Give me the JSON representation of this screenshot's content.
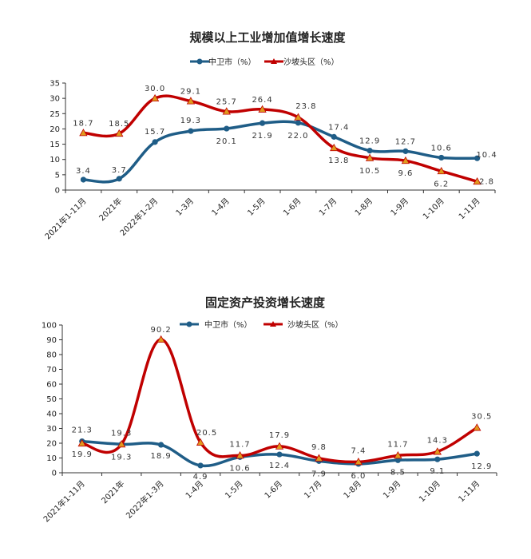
{
  "colors": {
    "blue": "#1f5d87",
    "red": "#c00000",
    "redMarker": "#e09a1e",
    "axis": "#333333"
  },
  "chart_data": [
    {
      "type": "line",
      "title": "规模以上工业增加值增长速度",
      "categories": [
        "2021年1-11月",
        "2021年",
        "2022年1-2月",
        "1-3月",
        "1-4月",
        "1-5月",
        "1-6月",
        "1-7月",
        "1-8月",
        "1-9月",
        "1-10月",
        "1-11月"
      ],
      "ylim": [
        0,
        35
      ],
      "yticks": [
        0,
        5,
        10,
        15,
        20,
        25,
        30,
        35
      ],
      "legend_position": "top-center",
      "series": [
        {
          "name": "中卫市（%）",
          "values": [
            3.4,
            3.7,
            15.7,
            19.3,
            20.1,
            21.9,
            22.0,
            17.4,
            12.9,
            12.7,
            10.6,
            10.4
          ],
          "labels": [
            "3.4",
            "3.7",
            "15.7",
            "19.3",
            "20.1",
            "21.9",
            "22.0",
            "17.4",
            "12.9",
            "12.7",
            "10.6",
            "10.4"
          ]
        },
        {
          "name": "沙坡头区（%）",
          "values": [
            18.7,
            18.5,
            30.0,
            29.1,
            25.7,
            26.4,
            23.8,
            13.8,
            10.5,
            9.6,
            6.2,
            2.8
          ],
          "labels": [
            "18.7",
            "18.5",
            "30.0",
            "29.1",
            "25.7",
            "26.4",
            "23.8",
            "13.8",
            "10.5",
            "9.6",
            "6.2",
            "2.8"
          ]
        }
      ]
    },
    {
      "type": "line",
      "title": "固定资产投资增长速度",
      "categories": [
        "2021年1-11月",
        "2021年",
        "2022年1-3月",
        "1-4月",
        "1-5月",
        "1-6月",
        "1-7月",
        "1-8月",
        "1-9月",
        "1-10月",
        "1-11月"
      ],
      "ylim": [
        0,
        100
      ],
      "yticks": [
        0,
        10,
        20,
        30,
        40,
        50,
        60,
        70,
        80,
        90,
        100
      ],
      "legend_position": "top-center",
      "series": [
        {
          "name": "中卫市（%）",
          "values": [
            21.3,
            19.3,
            18.9,
            4.9,
            10.6,
            12.4,
            7.9,
            6.0,
            8.5,
            9.1,
            12.9
          ],
          "labels": [
            "21.3",
            "19.3",
            "18.9",
            "4.9",
            "10.6",
            "12.4",
            "7.9",
            "6.0",
            "8.5",
            "9.1",
            "12.9"
          ]
        },
        {
          "name": "沙坡头区（%）",
          "values": [
            19.9,
            19.3,
            90.2,
            20.5,
            11.7,
            17.9,
            9.8,
            7.4,
            11.7,
            14.3,
            30.5
          ],
          "labels": [
            "19.9",
            "19.3",
            "90.2",
            "20.5",
            "11.7",
            "17.9",
            "9.8",
            "7.4",
            "11.7",
            "14.3",
            "30.5"
          ]
        }
      ]
    }
  ]
}
